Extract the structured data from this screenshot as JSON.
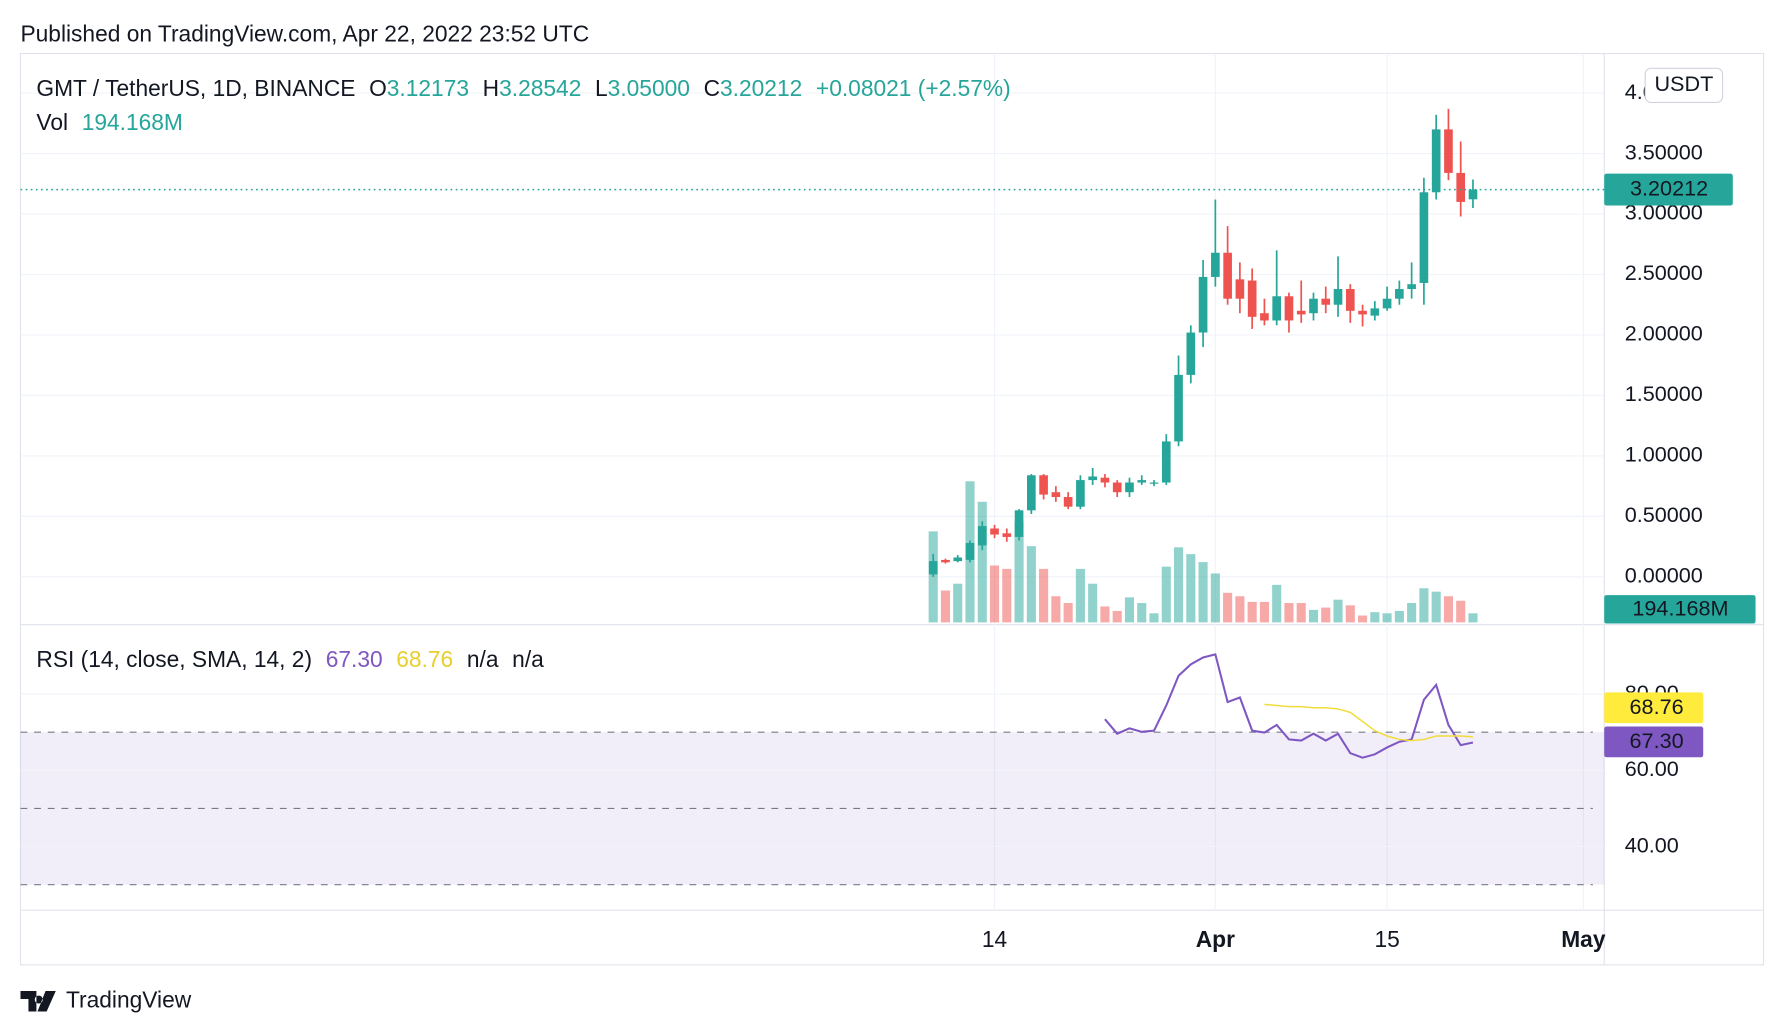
{
  "header": {
    "published": "Published on TradingView.com, Apr 22, 2022 23:52 UTC"
  },
  "legend": {
    "symbol": "GMT / TetherUS, 1D, BINANCE",
    "o_label": "O",
    "open": "3.12173",
    "h_label": "H",
    "high": "3.28542",
    "l_label": "L",
    "low": "3.05000",
    "c_label": "C",
    "close": "3.20212",
    "change": "+0.08021 (+2.57%)",
    "vol_label": "Vol",
    "vol": "194.168M",
    "currency": "USDT"
  },
  "rsi_legend": {
    "title": "RSI (14, close, SMA, 14, 2)",
    "rsi": "67.30",
    "sma": "68.76",
    "na1": "n/a",
    "na2": "n/a"
  },
  "footer": {
    "brand": "TradingView"
  },
  "chart_data": [
    {
      "type": "candlestick",
      "x": [
        0,
        1,
        2,
        3,
        4,
        5,
        6,
        7,
        8,
        9,
        10,
        11,
        12,
        13,
        14,
        15,
        16,
        17,
        18,
        19,
        20,
        21,
        22,
        23,
        24,
        25,
        26,
        27,
        28,
        29,
        30,
        31,
        32,
        33,
        34,
        35,
        36,
        37,
        38,
        39,
        40,
        41,
        42,
        43,
        44
      ],
      "open": [
        0.02,
        0.14,
        0.13,
        0.14,
        0.26,
        0.4,
        0.36,
        0.33,
        0.55,
        0.84,
        0.7,
        0.66,
        0.58,
        0.8,
        0.82,
        0.78,
        0.7,
        0.78,
        0.77,
        0.78,
        1.12,
        1.67,
        2.02,
        2.48,
        2.68,
        2.46,
        2.45,
        2.18,
        2.12,
        2.32,
        2.2,
        2.18,
        2.3,
        2.25,
        2.38,
        2.2,
        2.16,
        2.22,
        2.3,
        2.38,
        2.43,
        3.18,
        3.7,
        3.34,
        3.12173
      ],
      "high": [
        0.19,
        0.15,
        0.18,
        0.3,
        0.46,
        0.43,
        0.4,
        0.56,
        0.85,
        0.85,
        0.75,
        0.7,
        0.84,
        0.9,
        0.85,
        0.8,
        0.82,
        0.84,
        0.8,
        1.18,
        1.83,
        2.08,
        2.62,
        3.12,
        2.9,
        2.6,
        2.55,
        2.3,
        2.7,
        2.35,
        2.45,
        2.35,
        2.4,
        2.65,
        2.42,
        2.25,
        2.28,
        2.4,
        2.45,
        2.6,
        3.3,
        3.82,
        3.87,
        3.6,
        3.28542
      ],
      "low": [
        0.0,
        0.11,
        0.12,
        0.12,
        0.22,
        0.32,
        0.29,
        0.3,
        0.52,
        0.64,
        0.62,
        0.56,
        0.56,
        0.76,
        0.74,
        0.66,
        0.66,
        0.76,
        0.75,
        0.76,
        1.08,
        1.6,
        1.9,
        2.4,
        2.25,
        2.18,
        2.05,
        2.08,
        2.08,
        2.02,
        2.1,
        2.12,
        2.18,
        2.15,
        2.1,
        2.07,
        2.12,
        2.2,
        2.25,
        2.3,
        2.25,
        3.12,
        3.28,
        2.98,
        3.05
      ],
      "close": [
        0.13,
        0.12,
        0.16,
        0.28,
        0.42,
        0.35,
        0.33,
        0.55,
        0.84,
        0.68,
        0.66,
        0.58,
        0.8,
        0.83,
        0.78,
        0.7,
        0.78,
        0.8,
        0.78,
        1.12,
        1.67,
        2.02,
        2.48,
        2.68,
        2.3,
        2.3,
        2.15,
        2.12,
        2.32,
        2.12,
        2.17,
        2.3,
        2.25,
        2.38,
        2.2,
        2.17,
        2.22,
        2.3,
        2.38,
        2.42,
        3.18,
        3.7,
        3.34,
        3.1,
        3.20212
      ],
      "colors": {
        "up": "#26a69a",
        "down": "#ef5350"
      },
      "xlim": [
        -74.4,
        54.7
      ],
      "xticks": [
        {
          "value": 5,
          "label": "14"
        },
        {
          "value": 23,
          "label": "Apr"
        },
        {
          "value": 37,
          "label": "15"
        },
        {
          "value": 53,
          "label": "May"
        }
      ],
      "ylim": [
        -0.386,
        4.318
      ],
      "yticks": [
        {
          "value": 0,
          "label": "0.00000"
        },
        {
          "value": 0.5,
          "label": "0.50000"
        },
        {
          "value": 1,
          "label": "1.00000"
        },
        {
          "value": 1.5,
          "label": "1.50000"
        },
        {
          "value": 2,
          "label": "2.00000"
        },
        {
          "value": 2.5,
          "label": "2.50000"
        },
        {
          "value": 3,
          "label": "3.00000"
        },
        {
          "value": 3.5,
          "label": "3.50000"
        },
        {
          "value": 4,
          "label": "4.00000"
        }
      ],
      "grid": true,
      "last_price_line": true
    },
    {
      "type": "bar",
      "x": [
        0,
        1,
        2,
        3,
        4,
        5,
        6,
        7,
        8,
        9,
        10,
        11,
        12,
        13,
        14,
        15,
        16,
        17,
        18,
        19,
        20,
        21,
        22,
        23,
        24,
        25,
        26,
        27,
        28,
        29,
        30,
        31,
        32,
        33,
        34,
        35,
        36,
        37,
        38,
        39,
        40,
        41,
        42,
        43,
        44
      ],
      "values": [
        1942000000,
        680000000,
        825000000,
        3010000000,
        2573000000,
        1214000000,
        1141000000,
        2160000000,
        1626000000,
        1141000000,
        558000000,
        413000000,
        1141000000,
        825000000,
        340000000,
        243000000,
        534000000,
        413000000,
        194000000,
        1189000000,
        1602000000,
        1456000000,
        1286000000,
        1044000000,
        631000000,
        558000000,
        437000000,
        437000000,
        801000000,
        413000000,
        413000000,
        267000000,
        316000000,
        485000000,
        364000000,
        146000000,
        218000000,
        194000000,
        243000000,
        413000000,
        728000000,
        655000000,
        558000000,
        461000000,
        194168000
      ],
      "colors": {
        "up": "rgba(38,166,154,0.5)",
        "down": "rgba(239,83,80,0.5)"
      }
    },
    {
      "type": "line",
      "x": [
        0,
        1,
        2,
        3,
        4,
        5,
        6,
        7,
        8,
        9,
        10,
        11,
        12,
        13,
        14,
        15,
        16,
        17,
        18,
        19,
        20,
        21,
        22,
        23,
        24,
        25,
        26,
        27,
        28,
        29,
        30,
        31,
        32,
        33,
        34,
        35,
        36,
        37,
        38,
        39,
        40,
        41,
        42,
        43,
        44
      ],
      "series": [
        {
          "color": "#7e57c2",
          "values": [
            null,
            null,
            null,
            null,
            null,
            null,
            null,
            null,
            null,
            null,
            null,
            null,
            null,
            null,
            73.4,
            69.6,
            71.0,
            70.1,
            70.4,
            77.0,
            84.8,
            87.8,
            89.6,
            90.4,
            77.9,
            79.1,
            70.4,
            69.9,
            71.9,
            68.1,
            67.8,
            69.6,
            67.8,
            69.6,
            64.5,
            63.3,
            64.2,
            66.0,
            67.5,
            68.1,
            78.5,
            82.4,
            71.9,
            66.6,
            67.3
          ]
        },
        {
          "color": "#f2dc3a",
          "values": [
            null,
            null,
            null,
            null,
            null,
            null,
            null,
            null,
            null,
            null,
            null,
            null,
            null,
            null,
            null,
            null,
            null,
            null,
            null,
            null,
            null,
            null,
            null,
            null,
            null,
            null,
            null,
            77.3,
            77.0,
            76.7,
            76.7,
            76.4,
            76.4,
            76.1,
            75.2,
            72.8,
            70.4,
            69.0,
            68.1,
            67.8,
            68.1,
            69.0,
            69.0,
            69.0,
            68.76
          ]
        }
      ],
      "ylim": [
        23.3,
        98.2
      ],
      "yticks": [
        {
          "value": 40,
          "label": "40.00"
        },
        {
          "value": 60,
          "label": "60.00"
        },
        {
          "value": 80,
          "label": "80.00"
        }
      ],
      "levels": [
        70,
        50,
        30
      ],
      "band_color": "#7e57c2",
      "grid": true
    }
  ]
}
